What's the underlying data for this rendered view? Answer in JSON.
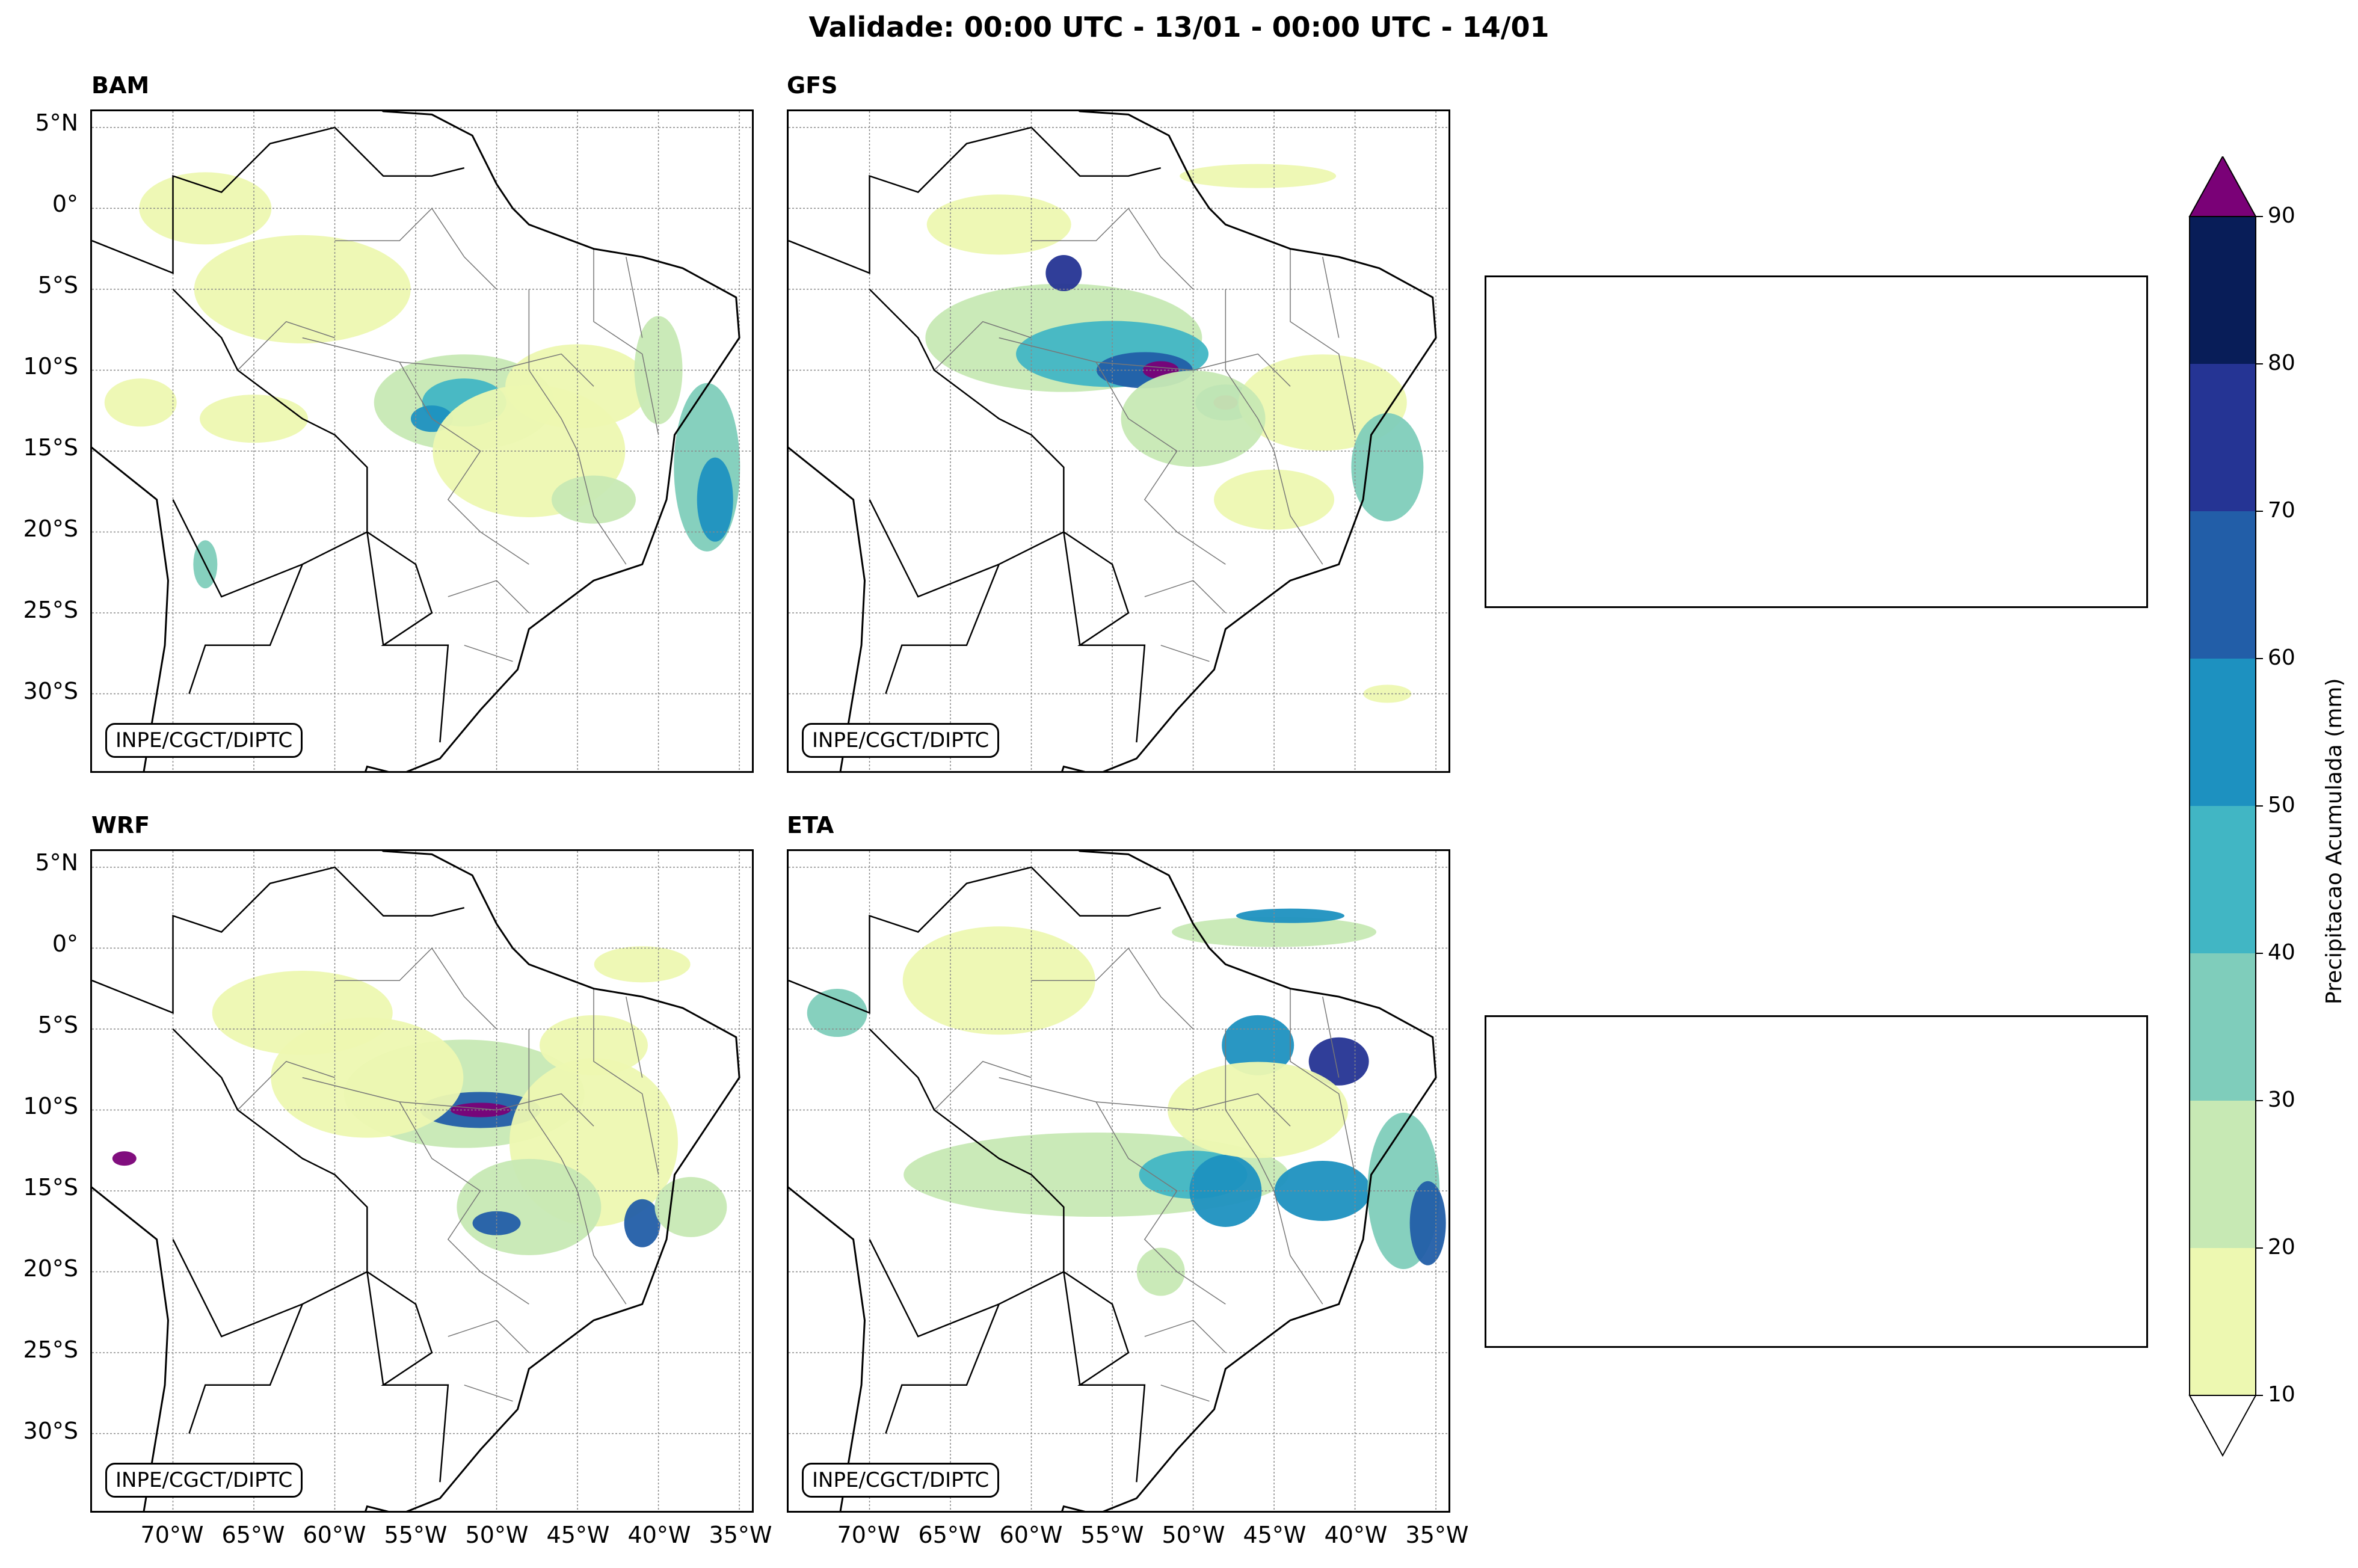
{
  "title": "Validade: 00:00 UTC - 13/01 - 00:00 UTC - 14/01",
  "credit": "INPE/CGCT/DIPTC",
  "panels": [
    {
      "name": "BAM"
    },
    {
      "name": "GFS"
    },
    {
      "name": "WRF"
    },
    {
      "name": "ETA"
    }
  ],
  "lat_labels": [
    "5°N",
    "0°",
    "5°S",
    "10°S",
    "15°S",
    "20°S",
    "25°S",
    "30°S"
  ],
  "lon_labels": [
    "70°W",
    "65°W",
    "60°W",
    "55°W",
    "50°W",
    "45°W",
    "40°W",
    "35°W"
  ],
  "colorbar": {
    "label": "Precipitacao Acumulada (mm)",
    "ticks": [
      "10",
      "20",
      "30",
      "40",
      "50",
      "60",
      "70",
      "80",
      "90"
    ],
    "colors": [
      "#edf8b1",
      "#c7e9b4",
      "#7fcdbb",
      "#41b6c4",
      "#1d91c0",
      "#225ea8",
      "#253494",
      "#081d58"
    ],
    "over_color": "#7a0177",
    "under_color": "#ffffff"
  }
}
